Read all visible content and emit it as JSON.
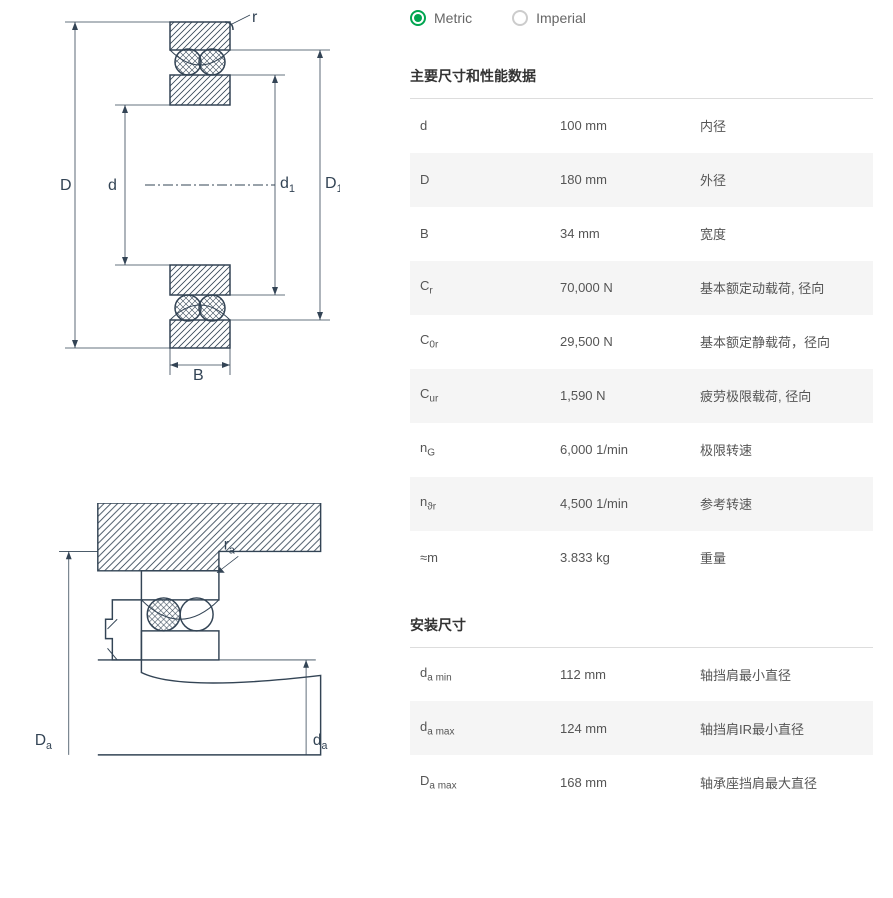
{
  "units": {
    "metric_label": "Metric",
    "imperial_label": "Imperial",
    "selected": "metric"
  },
  "diagram1": {
    "labels": {
      "D": "D",
      "d": "d",
      "d1": "d",
      "d1_sub": "1",
      "D1": "D",
      "D1_sub": "1",
      "B": "B",
      "r": "r"
    }
  },
  "diagram2": {
    "labels": {
      "Da": "D",
      "Da_sub": "a",
      "da": "d",
      "da_sub": "a",
      "ra": "r",
      "ra_sub": "a"
    }
  },
  "section1": {
    "title": "主要尺寸和性能数据",
    "rows": [
      {
        "sym": "d",
        "sub": "",
        "val": "100 mm",
        "desc": "内径"
      },
      {
        "sym": "D",
        "sub": "",
        "val": "180 mm",
        "desc": "外径"
      },
      {
        "sym": "B",
        "sub": "",
        "val": "34 mm",
        "desc": "宽度"
      },
      {
        "sym": "C",
        "sub": "r",
        "val": "70,000 N",
        "desc": "基本额定动载荷, 径向"
      },
      {
        "sym": "C",
        "sub": "0r",
        "val": "29,500 N",
        "desc": "基本额定静载荷，径向"
      },
      {
        "sym": "C",
        "sub": "ur",
        "val": "1,590 N",
        "desc": "疲劳极限载荷, 径向"
      },
      {
        "sym": "n",
        "sub": "G",
        "val": "6,000 1/min",
        "desc": "极限转速"
      },
      {
        "sym": "n",
        "sub": "ϑr",
        "val": "4,500 1/min",
        "desc": "参考转速"
      },
      {
        "sym": "≈m",
        "sub": "",
        "val": "3.833 kg",
        "desc": "重量"
      }
    ]
  },
  "section2": {
    "title": "安装尺寸",
    "rows": [
      {
        "sym": "d",
        "sub": "a min",
        "val": "112 mm",
        "desc": "轴挡肩最小直径"
      },
      {
        "sym": "d",
        "sub": "a max",
        "val": "124 mm",
        "desc": "轴挡肩IR最小直径"
      },
      {
        "sym": "D",
        "sub": "a max",
        "val": "168 mm",
        "desc": "轴承座挡肩最大直径"
      }
    ]
  }
}
